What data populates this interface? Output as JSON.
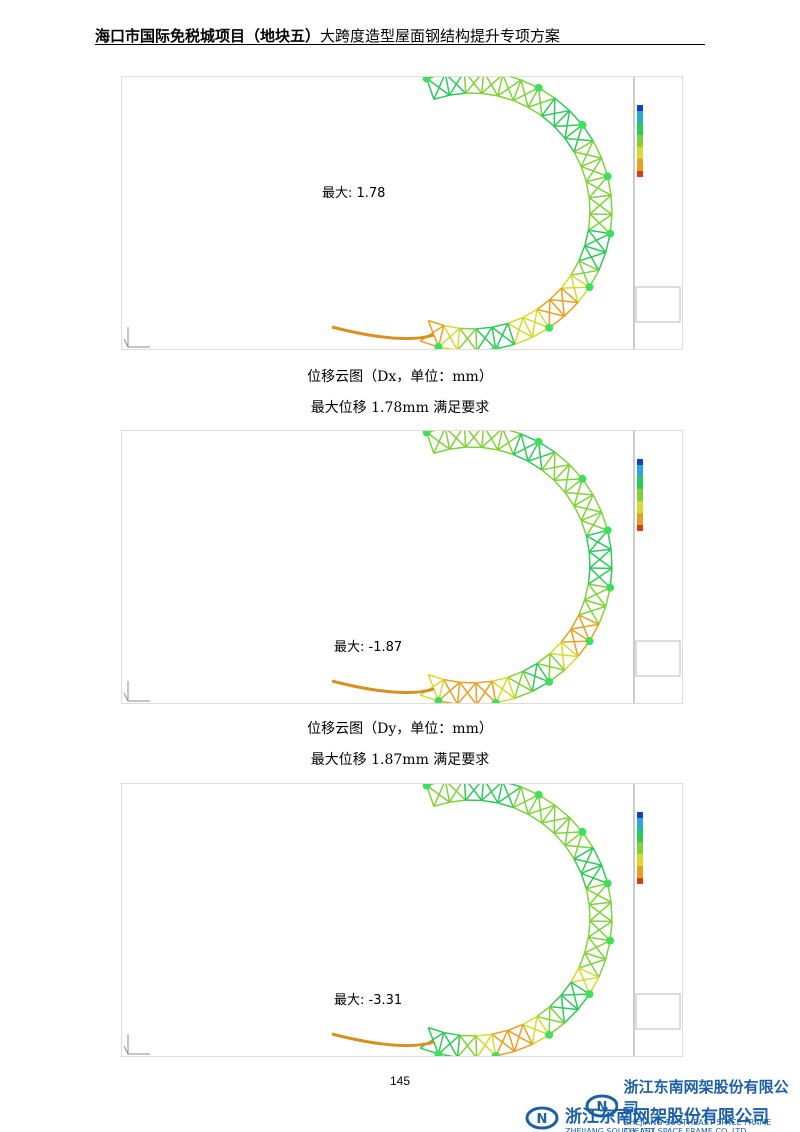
{
  "header": {
    "title_bold": "海口市国际免税城项目（地块五）",
    "title_rest": "大跨度造型屋面钢结构提升专项方案"
  },
  "figures": [
    {
      "max_label": "最大: 1.78",
      "caption": "位移云图（Dx，单位：mm）",
      "note": "最大位移 1.78mm 满足要求"
    },
    {
      "max_label": "最大: -1.87",
      "caption": "位移云图（Dy，单位：mm）",
      "note": "最大位移 1.87mm 满足要求"
    },
    {
      "max_label": "最大: -3.31"
    }
  ],
  "page_number": "145",
  "footer": {
    "company": "浙江东南网架股份有限公司",
    "company_en": "ZHEJIANG SOUTHEAST SPACE FRAME CO.,LTD."
  }
}
